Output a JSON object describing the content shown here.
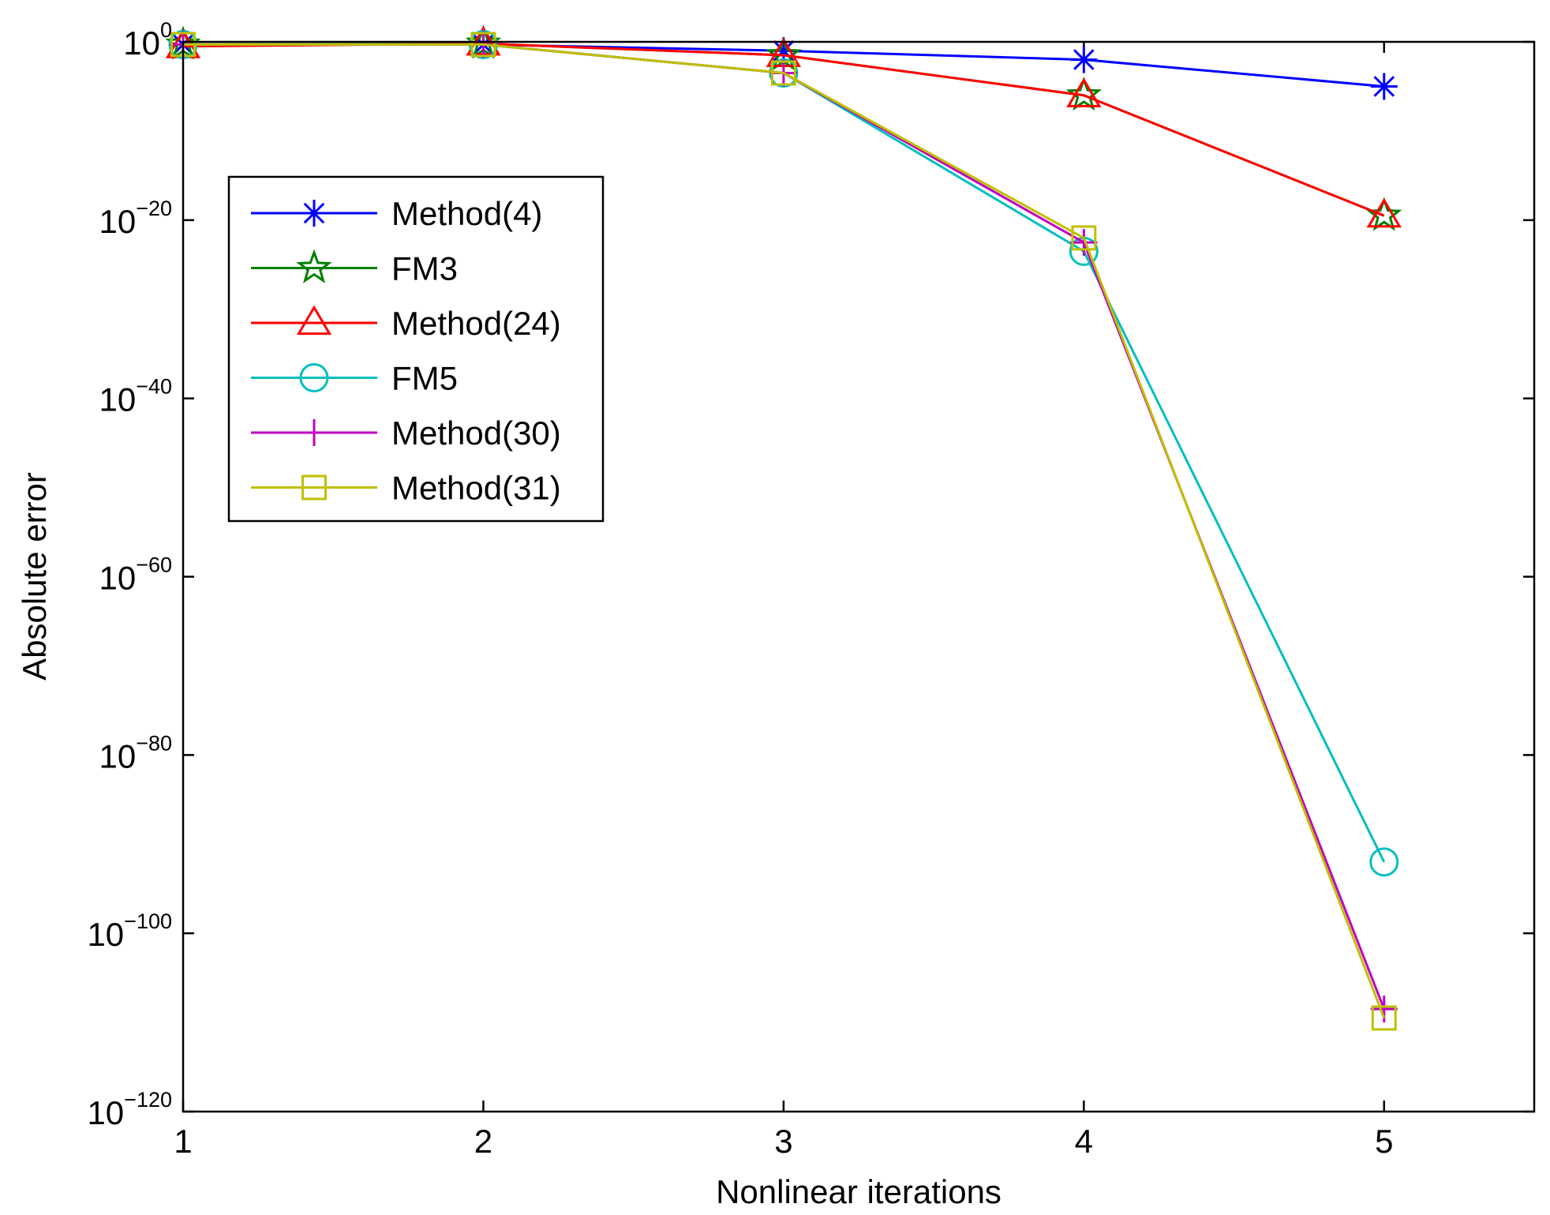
{
  "chart_data": {
    "type": "line",
    "title": "",
    "xlabel": "Nonlinear iterations",
    "ylabel": "Absolute error",
    "yscale": "log",
    "xlim": [
      1,
      5.5
    ],
    "ylim_exponent": [
      -120,
      0
    ],
    "x_ticks": [
      "1",
      "2",
      "3",
      "4",
      "5"
    ],
    "y_ticks": [
      {
        "base": "10",
        "exp": "0",
        "value": 0
      },
      {
        "base": "10",
        "exp": "−20",
        "value": -20
      },
      {
        "base": "10",
        "exp": "−40",
        "value": -40
      },
      {
        "base": "10",
        "exp": "−60",
        "value": -60
      },
      {
        "base": "10",
        "exp": "−80",
        "value": -80
      },
      {
        "base": "10",
        "exp": "−100",
        "value": -100
      },
      {
        "base": "10",
        "exp": "−120",
        "value": -120
      }
    ],
    "x": [
      1,
      2,
      3,
      4,
      5
    ],
    "legend_position": "upper-left",
    "series": [
      {
        "name": "Method(4)",
        "color": "#0000ff",
        "marker": "asterisk",
        "log10_values": [
          -0.3,
          -0.3,
          -1.0,
          -2.0,
          -5.0
        ]
      },
      {
        "name": "FM3",
        "color": "#008000",
        "marker": "star",
        "log10_values": [
          -0.3,
          -0.2,
          -1.5,
          -6.0,
          -19.5
        ]
      },
      {
        "name": "Method(24)",
        "color": "#ff0000",
        "marker": "triangle",
        "log10_values": [
          -0.5,
          -0.2,
          -1.5,
          -6.0,
          -19.5
        ]
      },
      {
        "name": "FM5",
        "color": "#00bfbf",
        "marker": "circle",
        "log10_values": [
          -0.3,
          -0.3,
          -3.5,
          -23.5,
          -92.0
        ]
      },
      {
        "name": "Method(30)",
        "color": "#bf00bf",
        "marker": "plus",
        "log10_values": [
          -0.3,
          -0.3,
          -3.5,
          -22.5,
          -108.5
        ]
      },
      {
        "name": "Method(31)",
        "color": "#bfbf00",
        "marker": "square",
        "log10_values": [
          -0.3,
          -0.3,
          -3.5,
          -22.0,
          -109.5
        ]
      }
    ]
  }
}
